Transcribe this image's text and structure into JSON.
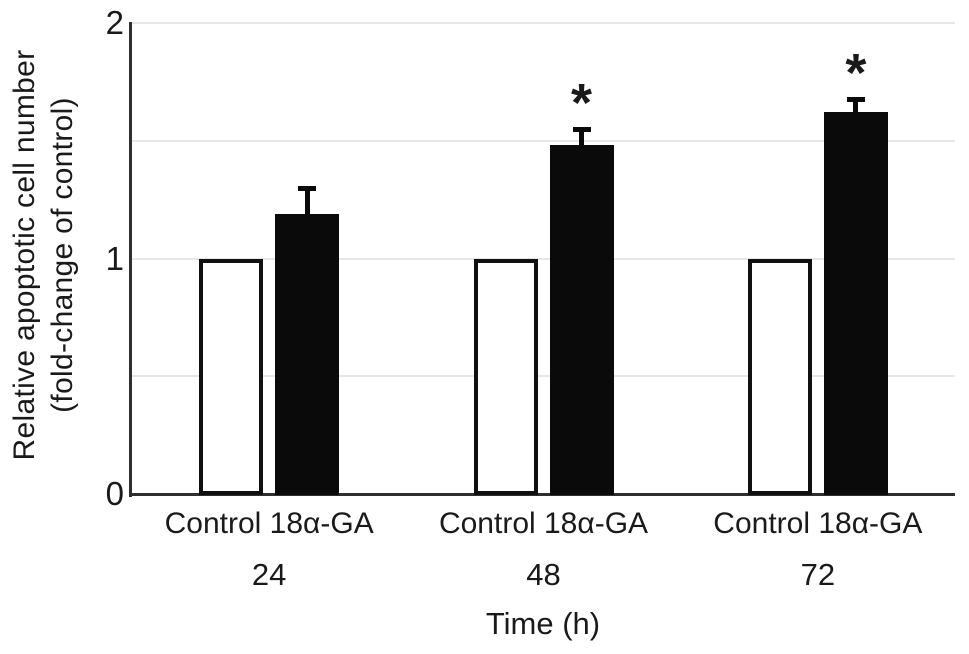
{
  "colors": {
    "background": "#ffffff",
    "text": "#1a1a1a",
    "axis": "#2f2f2f",
    "gridline": "#e7e7e7",
    "bar_filled": "#0a0a0a",
    "bar_open_fill": "#ffffff",
    "bar_outline": "#101010",
    "error_bar": "#0a0a0a"
  },
  "chart_data": {
    "type": "bar",
    "title": "",
    "xlabel": "Time (h)",
    "ylabel_lines": [
      "Relative apoptotic cell number",
      "(fold-change of control)"
    ],
    "ylim": [
      0,
      2
    ],
    "yticks": [
      {
        "value": 2,
        "label": "2"
      },
      {
        "value": 1,
        "label": "1"
      },
      {
        "value": 0,
        "label": "0"
      }
    ],
    "gridlines_at": [
      0.5,
      1,
      1.5,
      2
    ],
    "grid": "on",
    "legend": "none",
    "categories": [
      "24",
      "48",
      "72"
    ],
    "series": [
      {
        "name": "Control",
        "style": "open",
        "values": [
          1.0,
          1.0,
          1.0
        ],
        "errors": [
          0,
          0,
          0
        ],
        "significance": [
          "",
          "",
          ""
        ]
      },
      {
        "name": "18α-GA",
        "style": "filled",
        "values": [
          1.19,
          1.48,
          1.62
        ],
        "errors": [
          0.1,
          0.06,
          0.05
        ],
        "significance": [
          "",
          "*",
          "*"
        ]
      }
    ]
  }
}
